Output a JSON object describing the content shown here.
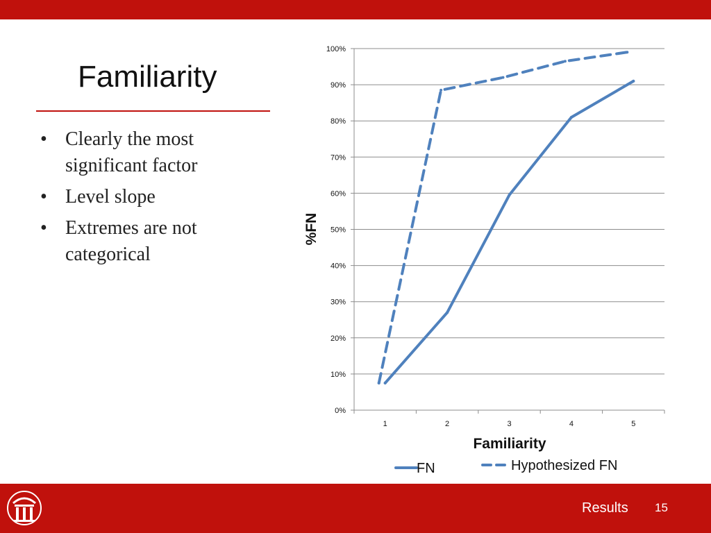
{
  "slide": {
    "title": "Familiarity",
    "bullets": [
      "Clearly the most significant factor",
      "Level slope",
      "Extremes are not categorical"
    ],
    "footer_label": "Results",
    "page_number": "15"
  },
  "colors": {
    "accent": "#c0110c",
    "series": "#4f81bd"
  },
  "chart_data": {
    "type": "line",
    "x": [
      1,
      2,
      3,
      4,
      5
    ],
    "xlabel": "Familiarity",
    "ylabel": "%FN",
    "ylim": [
      0,
      100
    ],
    "yticks": [
      "0%",
      "10%",
      "20%",
      "30%",
      "40%",
      "50%",
      "60%",
      "70%",
      "80%",
      "90%",
      "100%"
    ],
    "xticks": [
      "1",
      "2",
      "3",
      "4",
      "5"
    ],
    "grid": true,
    "legend_position": "bottom",
    "series": [
      {
        "name": "FN",
        "style": "solid",
        "values": [
          7.5,
          27,
          59.5,
          81,
          91
        ]
      },
      {
        "name": "Hypothesized FN",
        "style": "dashed",
        "values": [
          7.5,
          88.5,
          92,
          96.5,
          99
        ]
      }
    ]
  }
}
